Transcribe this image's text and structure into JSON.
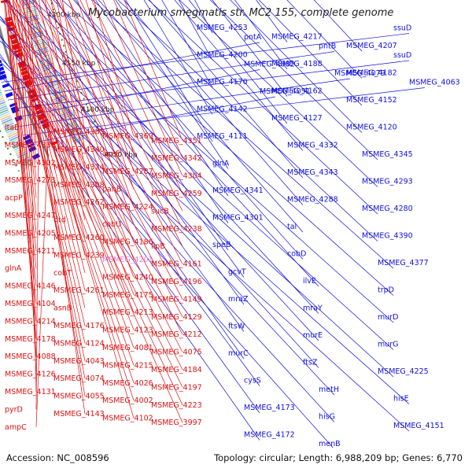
{
  "title": "Mycobacterium smegmatis str. MC2 155, complete genome",
  "footer": {
    "accession_label": "Accession:",
    "accession": "NC_008596",
    "topology_label": "Topology:",
    "topology": "circular",
    "length_label": "Length:",
    "length": "6,988,209 bp",
    "genes_label": "Genes:",
    "genes": "6,770"
  },
  "colors": {
    "forward_strand": "#1010e0",
    "reverse_strand": "#e01010",
    "highlight_label": "#e080e0",
    "backbone": "#808080",
    "tick_dots": "#2a8a2a"
  },
  "scale_ticks": [
    "4550 kbp",
    "4500 kbp",
    "4450 kbp",
    "4400 kbp",
    "4350 kbp",
    "4300 kbp",
    "4250 kbp",
    "4200 kbp",
    "4150 kbp",
    "4100 kbp",
    "4050 kbp"
  ],
  "forward_labels": [
    "MSMEG_4253",
    "MSMEG_4217",
    "MSMEG_4207",
    "MSMEG_4200",
    "MSMEG_4188",
    "MSMEG_4182",
    "MSMEG_4170",
    "MSMEG_4162",
    "MSMEG_4152",
    "MSMEG_4142",
    "MSMEG_4127",
    "MSMEG_4120",
    "MSMEG_4111",
    "MSMEG_4332",
    "MSMEG_4345",
    "glnA",
    "MSMEG_4343",
    "MSMEG_4293",
    "MSMEG_4341",
    "MSMEG_4288",
    "MSMEG_4280",
    "MSMEG_4301",
    "tal",
    "MSMEG_4390",
    "speB",
    "cobD",
    "MSMEG_4377",
    "gcvT",
    "ilvE",
    "trpD",
    "mraZ",
    "mraY",
    "murD",
    "ftsW",
    "murE",
    "murG",
    "murC",
    "ftsZ",
    "MSMEG_4225",
    "cysS",
    "metH",
    "hisE",
    "MSMEG_4173",
    "hisG",
    "MSMEG_4151",
    "MSMEG_4172",
    "menB",
    "ssuD",
    "pntA",
    "pntB",
    "ssuD",
    "MSMEG_4082",
    "MSMEG_4079",
    "MSMEG_4063",
    "MSMEG_4051"
  ],
  "reverse_labels": [
    "ltaE",
    "MSMEG_4385",
    "MSMEG_4369",
    "MSMEG_4351",
    "MSMEG_4335",
    "MSMEG_4340",
    "aceE",
    "MSMEG_4342",
    "MSMEG_4302",
    "MSMEG_4324",
    "MSMEG_4287",
    "MSMEG_4304",
    "MSMEG_4273",
    "MSMEG_4308",
    "panB",
    "MSMEG_4259",
    "acpP",
    "MSMEG_4262",
    "MSMEG_4224",
    "sucB",
    "MSMEG_4247",
    "dtd",
    "cobU",
    "MSMEG_4238",
    "MSMEG_4205",
    "MSMEG_4260",
    "MSMEG_4186",
    "lipB",
    "MSMEG_4211",
    "MSMEG_4239",
    "MSMEG_4201",
    "MSMEG_4161",
    "glnA",
    "cobT",
    "MSMEG_4240",
    "MSMEG_4196",
    "MSMEG_4146",
    "MSMEG_4261",
    "MSMEG_4175",
    "MSMEG_4149",
    "MSMEG_4104",
    "asnB",
    "MSMEG_4213",
    "MSMEG_4129",
    "MSMEG_4214",
    "MSMEG_4176",
    "MSMEG_4123",
    "MSMEG_4212",
    "MSMEG_4178",
    "MSMEG_4124",
    "MSMEG_4081",
    "MSMEG_4075",
    "MSMEG_4088",
    "MSMEG_4043",
    "MSMEG_4215",
    "MSMEG_4184",
    "MSMEG_4126",
    "MSMEG_4074",
    "MSMEG_4026",
    "MSMEG_4197",
    "MSMEG_4131",
    "MSMEG_4055",
    "MSMEG_4002",
    "MSMEG_4223",
    "pyrD",
    "MSMEG_4143",
    "MSMEG_4102",
    "MSMEG_3997",
    "ampC"
  ]
}
